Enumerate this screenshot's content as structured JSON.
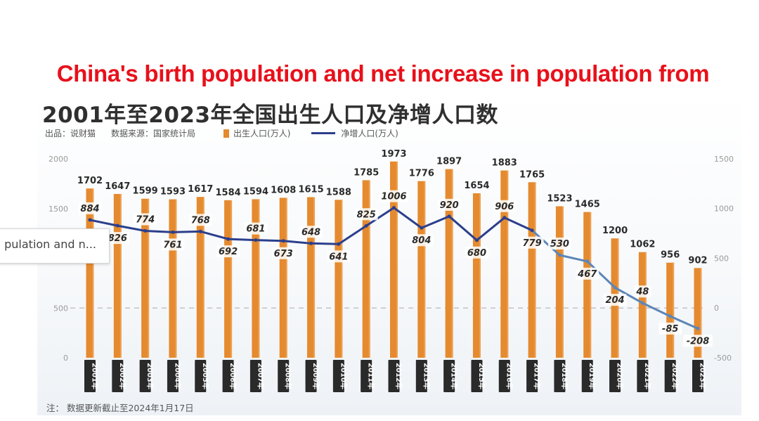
{
  "caption": "China's birth population and net increase in population from",
  "tooltip": {
    "text": "pulation and n..."
  },
  "chart_data": {
    "type": "bar+line",
    "title": "2001年至2023年全国出生人口及净增人口数",
    "caption_en": "China's birth population and net increase in population from",
    "source": {
      "producer_label": "出品：说财猫",
      "data_source_label": "数据来源：国家统计局"
    },
    "note": "注：  数据更新截止至2024年1月17日",
    "categories": [
      "2001年",
      "2002年",
      "2003年",
      "2004年",
      "2005年",
      "2006年",
      "2007年",
      "2008年",
      "2009年",
      "2010年",
      "2011年",
      "2012年",
      "2013年",
      "2014年",
      "2015年",
      "2016年",
      "2017年",
      "2018年",
      "2019年",
      "2020年",
      "2021年",
      "2022年",
      "2023年"
    ],
    "series": [
      {
        "name": "出生人口(万人)",
        "type": "bar",
        "axis": "left",
        "color": "#e58a2e",
        "values": [
          1702,
          1647,
          1599,
          1593,
          1617,
          1584,
          1594,
          1608,
          1615,
          1588,
          1785,
          1973,
          1776,
          1897,
          1654,
          1883,
          1765,
          1523,
          1465,
          1200,
          1062,
          956,
          902
        ]
      },
      {
        "name": "净增人口(万人)",
        "type": "line",
        "axis": "right",
        "color": "#2b3f8c",
        "color_recent": "#5b86b8",
        "values": [
          884,
          826,
          774,
          761,
          768,
          692,
          681,
          673,
          648,
          641,
          825,
          1006,
          804,
          920,
          680,
          906,
          779,
          530,
          467,
          204,
          48,
          -85,
          -208
        ]
      }
    ],
    "left_axis": {
      "ticks": [
        0,
        500,
        1500,
        2000
      ],
      "range": [
        0,
        2000
      ]
    },
    "right_axis": {
      "ticks": [
        -500,
        0,
        500,
        1000,
        1500
      ],
      "range": [
        -500,
        1500
      ]
    },
    "reference_line": {
      "axis": "left",
      "value": 500,
      "style": "dashed"
    },
    "legend": {
      "position": "top",
      "entries": [
        "出生人口(万人)",
        "净增人口(万人)"
      ]
    }
  }
}
